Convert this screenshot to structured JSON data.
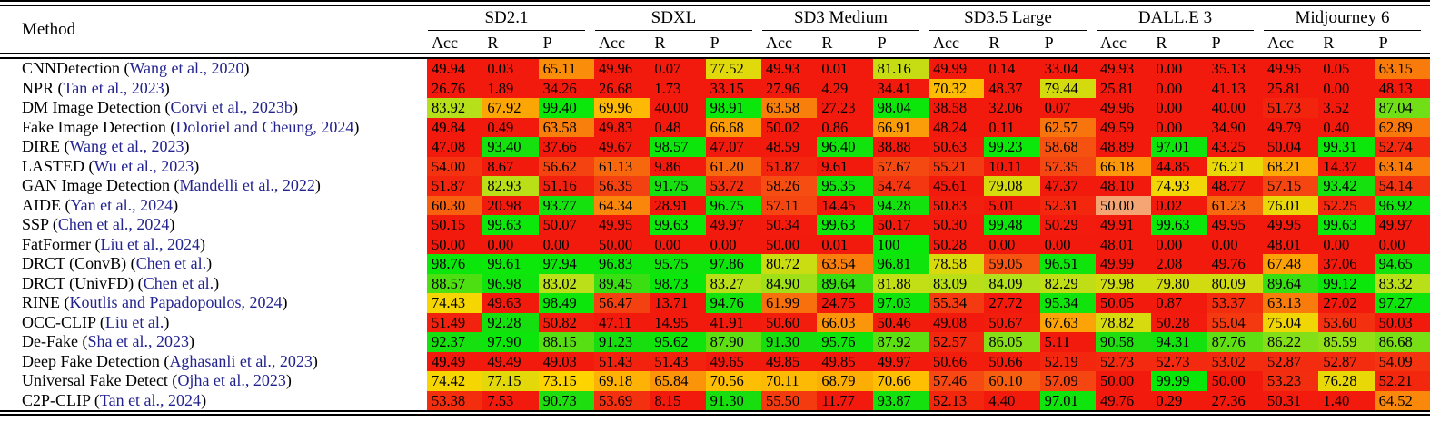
{
  "table": {
    "method_header": "Method",
    "groups": [
      "SD2.1",
      "SDXL",
      "SD3 Medium",
      "SD3.5 Large",
      "DALL.E 3",
      "Midjourney 6"
    ],
    "metrics": [
      "Acc",
      "R",
      "P"
    ],
    "citation_color": "#23238f",
    "heat_colormap": {
      "description": "cell background from value; <=50 clamps to red",
      "stops": [
        [
          50,
          "#f2190d"
        ],
        [
          58,
          "#f54b12"
        ],
        [
          65,
          "#fa8c0a"
        ],
        [
          73,
          "#ffd400"
        ],
        [
          84,
          "#b4e01a"
        ],
        [
          91,
          "#18de10"
        ],
        [
          100,
          "#0ae80a"
        ]
      ]
    },
    "special_cells": [
      {
        "row": 7,
        "col": 12,
        "color": "#f5a473"
      }
    ],
    "rows": [
      {
        "method": "CNNDetection",
        "citation": "Wang et al., 2020",
        "values": [
          "49.94",
          "0.03",
          "65.11",
          "49.96",
          "0.07",
          "77.52",
          "49.93",
          "0.01",
          "81.16",
          "49.99",
          "0.14",
          "33.04",
          "49.93",
          "0.00",
          "35.13",
          "49.95",
          "0.05",
          "63.15"
        ]
      },
      {
        "method": "NPR",
        "citation": "Tan et al., 2023",
        "values": [
          "26.76",
          "1.89",
          "34.26",
          "26.68",
          "1.73",
          "33.15",
          "27.96",
          "4.29",
          "34.41",
          "70.32",
          "48.37",
          "79.44",
          "25.81",
          "0.00",
          "41.13",
          "25.81",
          "0.00",
          "48.13"
        ]
      },
      {
        "method": "DM Image Detection",
        "citation": "Corvi et al., 2023b",
        "values": [
          "83.92",
          "67.92",
          "99.40",
          "69.96",
          "40.00",
          "98.91",
          "63.58",
          "27.23",
          "98.04",
          "38.58",
          "32.06",
          "0.07",
          "49.96",
          "0.00",
          "40.00",
          "51.73",
          "3.52",
          "87.04"
        ]
      },
      {
        "method": "Fake Image Detection",
        "citation": "Doloriel and Cheung, 2024",
        "values": [
          "49.84",
          "0.49",
          "63.58",
          "49.83",
          "0.48",
          "66.68",
          "50.02",
          "0.86",
          "66.91",
          "48.24",
          "0.11",
          "62.57",
          "49.59",
          "0.00",
          "34.90",
          "49.79",
          "0.40",
          "62.89"
        ]
      },
      {
        "method": "DIRE",
        "citation": "Wang et al., 2023",
        "values": [
          "47.08",
          "93.40",
          "37.66",
          "49.67",
          "98.57",
          "47.07",
          "48.59",
          "96.40",
          "38.88",
          "50.63",
          "99.23",
          "58.68",
          "48.89",
          "97.01",
          "43.25",
          "50.04",
          "99.31",
          "52.74"
        ]
      },
      {
        "method": "LASTED",
        "citation": "Wu et al., 2023",
        "values": [
          "54.00",
          "8.67",
          "56.62",
          "61.13",
          "9.86",
          "61.20",
          "51.87",
          "9.61",
          "57.67",
          "55.21",
          "10.11",
          "57.35",
          "66.18",
          "44.85",
          "76.21",
          "68.21",
          "14.37",
          "63.14"
        ]
      },
      {
        "method": "GAN Image Detection",
        "citation": "Mandelli et al., 2022",
        "values": [
          "51.87",
          "82.93",
          "51.16",
          "56.35",
          "91.75",
          "53.72",
          "58.26",
          "95.35",
          "54.74",
          "45.61",
          "79.08",
          "47.37",
          "48.10",
          "74.93",
          "48.77",
          "57.15",
          "93.42",
          "54.14"
        ]
      },
      {
        "method": "AIDE",
        "citation": "Yan et al., 2024",
        "values": [
          "60.30",
          "20.98",
          "93.77",
          "64.34",
          "28.91",
          "96.75",
          "57.11",
          "14.45",
          "94.28",
          "50.83",
          "5.01",
          "52.31",
          "50.00",
          "0.02",
          "61.23",
          "76.01",
          "52.25",
          "96.92"
        ]
      },
      {
        "method": "SSP",
        "citation": "Chen et al., 2024",
        "values": [
          "50.15",
          "99.63",
          "50.07",
          "49.95",
          "99.63",
          "49.97",
          "50.34",
          "99.63",
          "50.17",
          "50.30",
          "99.48",
          "50.29",
          "49.91",
          "99.63",
          "49.95",
          "49.95",
          "99.63",
          "49.97"
        ]
      },
      {
        "method": "FatFormer",
        "citation": "Liu et al., 2024",
        "values": [
          "50.00",
          "0.00",
          "0.00",
          "50.00",
          "0.00",
          "0.00",
          "50.00",
          "0.01",
          "100",
          "50.28",
          "0.00",
          "0.00",
          "48.01",
          "0.00",
          "0.00",
          "48.01",
          "0.00",
          "0.00"
        ]
      },
      {
        "method": "DRCT (ConvB)",
        "citation": "Chen et al.",
        "values": [
          "98.76",
          "99.61",
          "97.94",
          "96.83",
          "95.75",
          "97.86",
          "80.72",
          "63.54",
          "96.81",
          "78.58",
          "59.05",
          "96.51",
          "49.99",
          "2.08",
          "49.76",
          "67.48",
          "37.06",
          "94.65"
        ]
      },
      {
        "method": "DRCT (UnivFD)",
        "citation": "Chen et al.",
        "values": [
          "88.57",
          "96.98",
          "83.02",
          "89.45",
          "98.73",
          "83.27",
          "84.90",
          "89.64",
          "81.88",
          "83.09",
          "84.09",
          "82.29",
          "79.98",
          "79.80",
          "80.09",
          "89.64",
          "99.12",
          "83.32"
        ]
      },
      {
        "method": "RINE",
        "citation": "Koutlis and Papadopoulos, 2024",
        "values": [
          "74.43",
          "49.63",
          "98.49",
          "56.47",
          "13.71",
          "94.76",
          "61.99",
          "24.75",
          "97.03",
          "55.34",
          "27.72",
          "95.34",
          "50.05",
          "0.87",
          "53.37",
          "63.13",
          "27.02",
          "97.27"
        ]
      },
      {
        "method": "OCC-CLIP",
        "citation": "Liu et al.",
        "values": [
          "51.49",
          "92.28",
          "50.82",
          "47.11",
          "14.95",
          "41.91",
          "50.60",
          "66.03",
          "50.46",
          "49.08",
          "50.67",
          "67.63",
          "78.82",
          "50.28",
          "55.04",
          "75.04",
          "53.60",
          "50.03"
        ]
      },
      {
        "method": "De-Fake",
        "citation": "Sha et al., 2023",
        "values": [
          "92.37",
          "97.90",
          "88.15",
          "91.23",
          "95.62",
          "87.90",
          "91.30",
          "95.76",
          "87.92",
          "52.57",
          "86.05",
          "5.11",
          "90.58",
          "94.31",
          "87.76",
          "86.22",
          "85.59",
          "86.68"
        ]
      },
      {
        "method": "Deep Fake Detection",
        "citation": "Aghasanli et al., 2023",
        "values": [
          "49.49",
          "49.49",
          "49.03",
          "51.43",
          "51.43",
          "49.65",
          "49.85",
          "49.85",
          "49.97",
          "50.66",
          "50.66",
          "52.19",
          "52.73",
          "52.73",
          "53.02",
          "52.87",
          "52.87",
          "54.09"
        ]
      },
      {
        "method": "Universal Fake Detect",
        "citation": "Ojha et al., 2023",
        "values": [
          "74.42",
          "77.15",
          "73.15",
          "69.18",
          "65.84",
          "70.56",
          "70.11",
          "68.79",
          "70.66",
          "57.46",
          "60.10",
          "57.09",
          "50.00",
          "99.99",
          "50.00",
          "53.23",
          "76.28",
          "52.21"
        ]
      },
      {
        "method": "C2P-CLIP",
        "citation": "Tan et al., 2024",
        "values": [
          "53.38",
          "7.53",
          "90.73",
          "53.69",
          "8.15",
          "91.30",
          "55.50",
          "11.77",
          "93.87",
          "52.13",
          "4.40",
          "97.01",
          "49.76",
          "0.29",
          "27.36",
          "50.31",
          "1.40",
          "64.52"
        ]
      }
    ]
  }
}
